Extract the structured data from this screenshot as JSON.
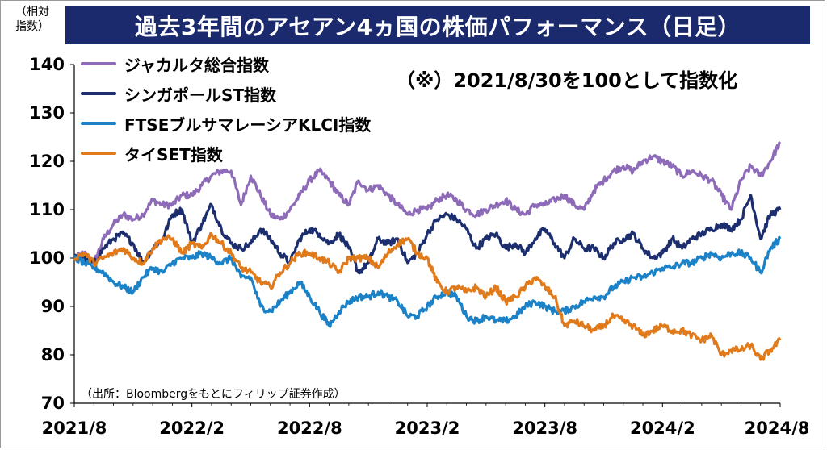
{
  "title": "過去3年間のアセアン4ヵ国の株価パフォーマンス（日足）",
  "unit_label": "（相対\n指数）",
  "note": "（※）2021/8/30を100として指数化",
  "source": "（出所：Bloombergをもとにフィリップ証券作成）",
  "chart_data": {
    "type": "line",
    "title": "過去3年間のアセアン4ヵ国の株価パフォーマンス（日足）",
    "ylim": [
      70,
      140
    ],
    "yticks": [
      "140",
      "130",
      "120",
      "110",
      "100",
      "90",
      "80",
      "70"
    ],
    "xticks": [
      "2021/8",
      "2022/2",
      "2022/8",
      "2023/2",
      "2023/8",
      "2024/2",
      "2024/8"
    ],
    "xlim": [
      0,
      36
    ],
    "grid": false,
    "legend_position": "top-left",
    "x": [
      0,
      0.5,
      1,
      1.5,
      2,
      2.5,
      3,
      3.5,
      4,
      4.5,
      5,
      5.5,
      6,
      6.5,
      7,
      7.5,
      8,
      8.5,
      9,
      9.5,
      10,
      10.5,
      11,
      11.5,
      12,
      12.5,
      13,
      13.5,
      14,
      14.5,
      15,
      15.5,
      16,
      16.5,
      17,
      17.5,
      18,
      18.5,
      19,
      19.5,
      20,
      20.5,
      21,
      21.5,
      22,
      22.5,
      23,
      23.5,
      24,
      24.5,
      25,
      25.5,
      26,
      26.5,
      27,
      27.5,
      28,
      28.5,
      29,
      29.5,
      30,
      30.5,
      31,
      31.5,
      32,
      32.5,
      33,
      33.5,
      34,
      34.5,
      35,
      35.5,
      36
    ],
    "series": [
      {
        "name": "ジャカルタ総合指数",
        "color": "#8e6bb8",
        "values": [
          100,
          101,
          99,
          104,
          107,
          109,
          108,
          109,
          112,
          111,
          111,
          113,
          113,
          115,
          117,
          118,
          118,
          111,
          117,
          113,
          109,
          108,
          110,
          113,
          116,
          118,
          116,
          113,
          111,
          116,
          114,
          115,
          113,
          111,
          109,
          110,
          110,
          112,
          113,
          112,
          110,
          109,
          110,
          111,
          112,
          110,
          109,
          111,
          111,
          112,
          113,
          111,
          110,
          114,
          116,
          118,
          119,
          118,
          120,
          121,
          120,
          119,
          117,
          118,
          117,
          116,
          113,
          110,
          116,
          119,
          117,
          120,
          124
        ]
      },
      {
        "name": "シンガポールST指数",
        "color": "#1c2e6e",
        "values": [
          100,
          100,
          99,
          102,
          104,
          105,
          103,
          99,
          102,
          104,
          109,
          110,
          103,
          107,
          111,
          106,
          103,
          102,
          103,
          106,
          104,
          101,
          99,
          104,
          106,
          105,
          103,
          105,
          102,
          97,
          99,
          104,
          103,
          104,
          99,
          101,
          105,
          108,
          109,
          108,
          106,
          102,
          104,
          105,
          102,
          103,
          101,
          104,
          106,
          103,
          100,
          104,
          102,
          102,
          100,
          103,
          104,
          105,
          102,
          100,
          101,
          104,
          102,
          104,
          105,
          106,
          107,
          106,
          108,
          113,
          104,
          109,
          110
        ]
      },
      {
        "name": "FTSEブルサマレーシアKLCI指数",
        "color": "#1b82c8",
        "values": [
          100,
          99,
          98,
          97,
          95,
          94,
          93,
          96,
          98,
          97,
          99,
          100,
          100,
          101,
          100,
          99,
          100,
          96,
          96,
          90,
          89,
          91,
          93,
          95,
          92,
          89,
          86,
          89,
          91,
          92,
          92,
          93,
          92,
          91,
          88,
          88,
          90,
          92,
          93,
          92,
          88,
          87,
          88,
          87,
          87,
          88,
          90,
          91,
          90,
          89,
          89,
          90,
          91,
          92,
          92,
          94,
          95,
          96,
          96,
          97,
          98,
          98,
          99,
          99,
          100,
          101,
          100,
          101,
          101,
          100,
          97,
          102,
          104
        ]
      },
      {
        "name": "タイSET指数",
        "color": "#e07a1a",
        "values": [
          100,
          101,
          99,
          100,
          101,
          102,
          100,
          99,
          102,
          104,
          104,
          101,
          103,
          102,
          105,
          103,
          101,
          98,
          97,
          95,
          94,
          97,
          99,
          101,
          101,
          100,
          99,
          97,
          100,
          100,
          100,
          98,
          101,
          103,
          104,
          101,
          100,
          95,
          93,
          94,
          93,
          94,
          92,
          94,
          91,
          92,
          94,
          96,
          94,
          92,
          86,
          87,
          86,
          85,
          86,
          88,
          87,
          86,
          84,
          85,
          86,
          85,
          85,
          84,
          83,
          84,
          80,
          81,
          81,
          82,
          79,
          81,
          83
        ]
      }
    ]
  }
}
